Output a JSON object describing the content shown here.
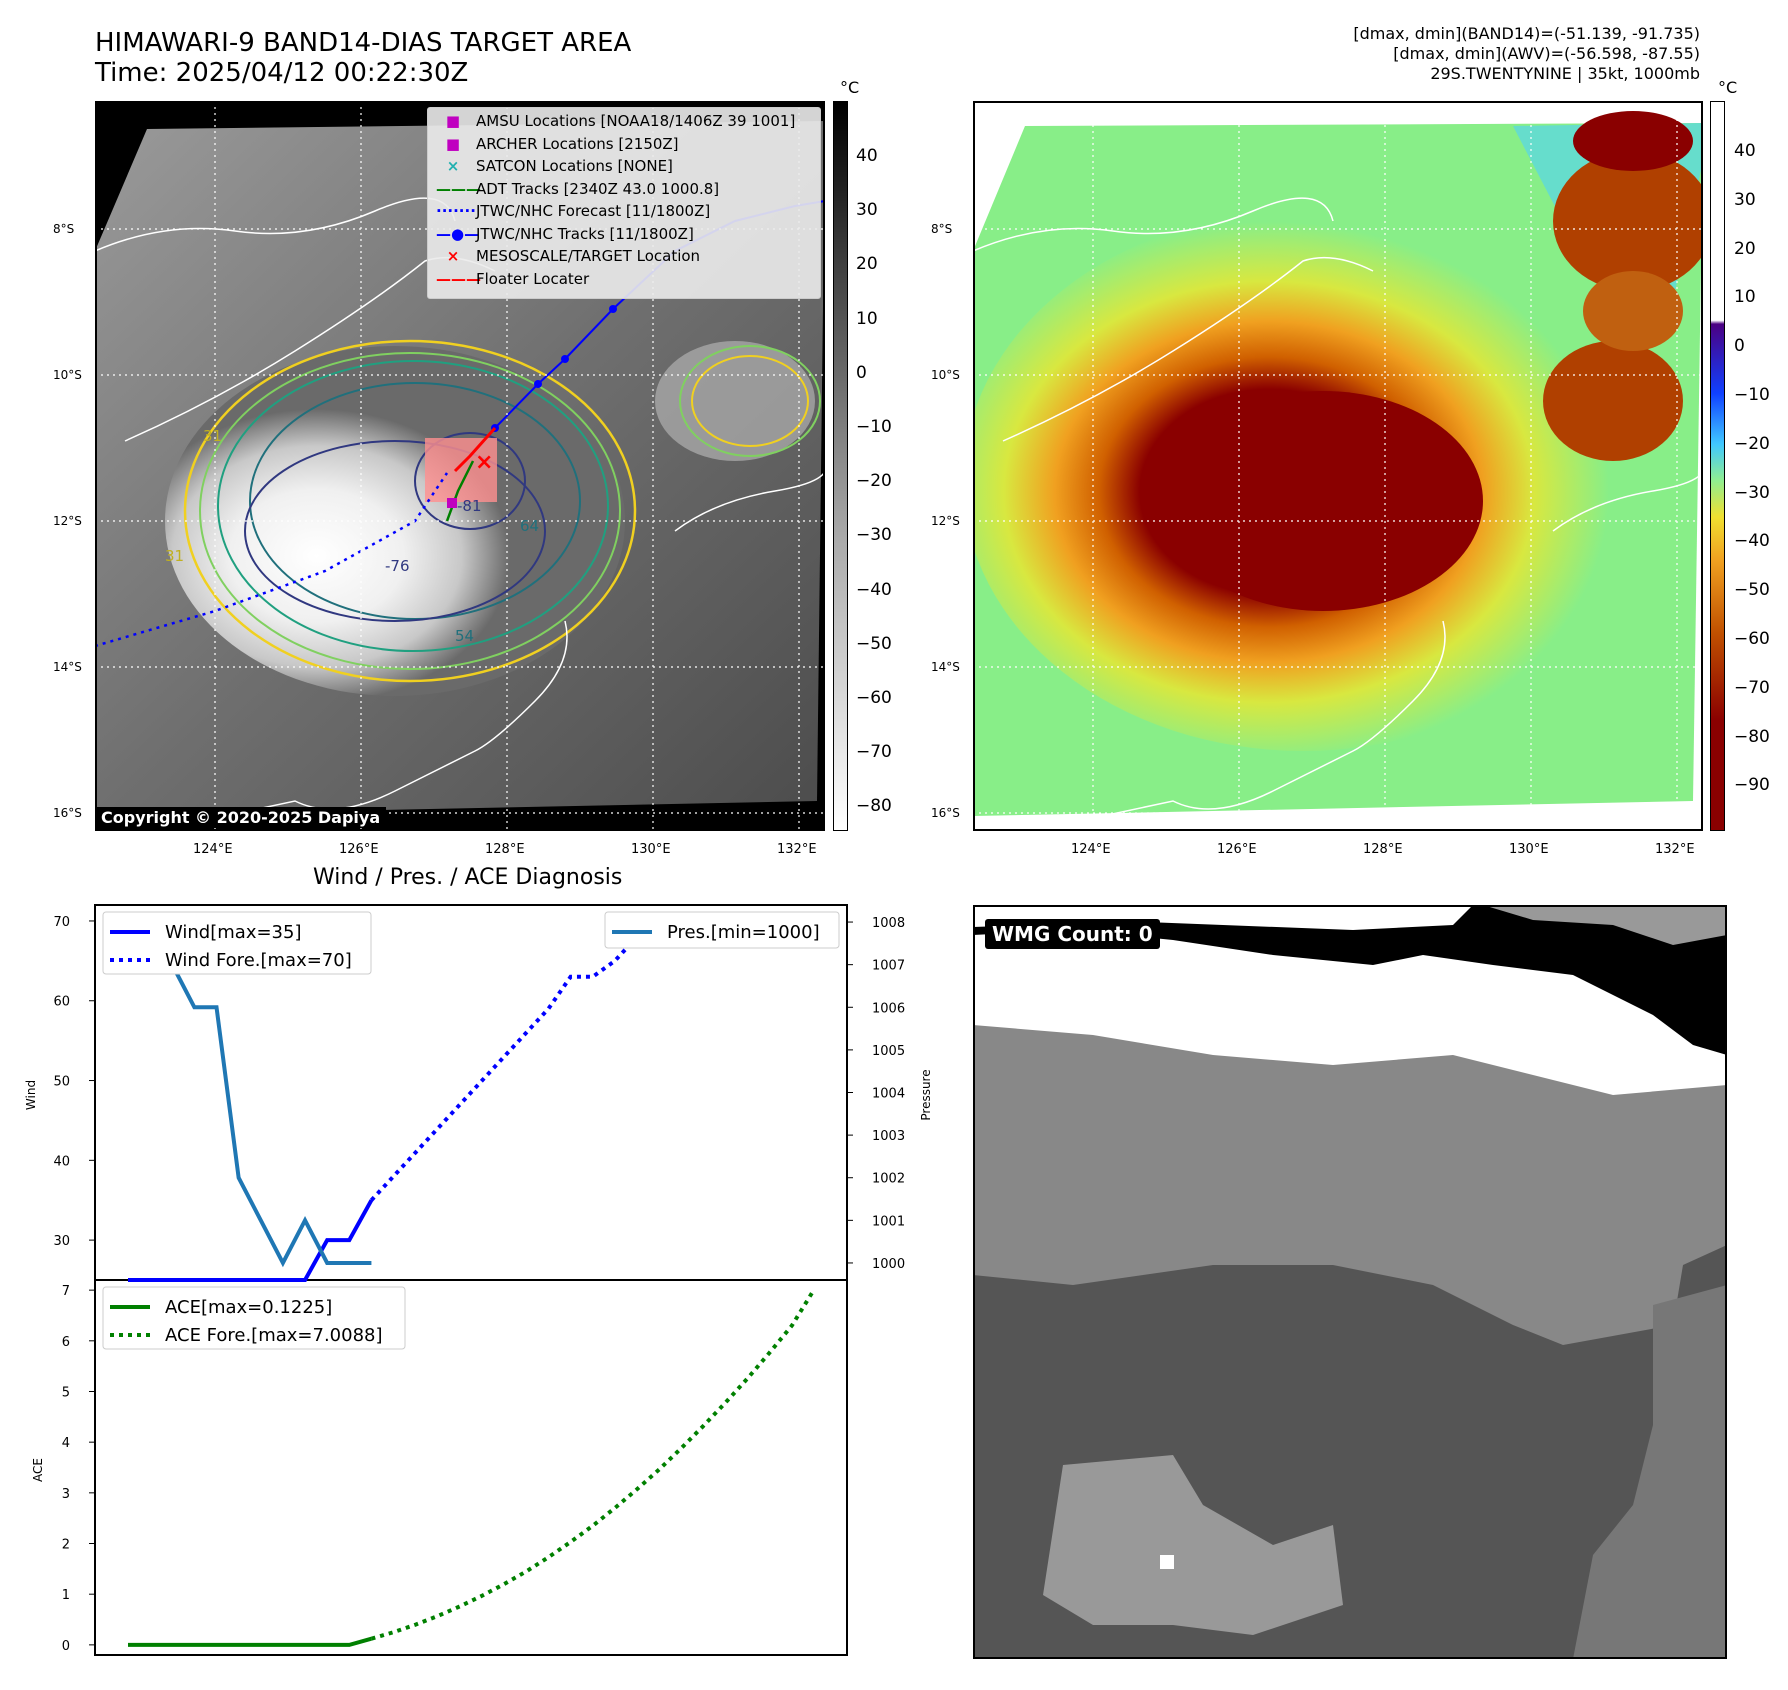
{
  "header": {
    "title_line1": "HIMAWARI-9 BAND14-DIAS TARGET AREA",
    "title_line2": "Time: 2025/04/12 00:22:30Z",
    "right_line1": "[dmax, dmin](BAND14)=(-51.139, -91.735)",
    "right_line2": "[dmax, dmin](AWV)=(-56.598, -87.55)",
    "right_line3": "29S.TWENTYNINE | 35kt, 1000mb"
  },
  "map_common": {
    "lat_labels": [
      "8°S",
      "10°S",
      "12°S",
      "14°S",
      "16°S"
    ],
    "lon_labels": [
      "124°E",
      "126°E",
      "128°E",
      "130°E",
      "132°E"
    ]
  },
  "panel_ir": {
    "legend": [
      {
        "label": "AMSU Locations [NOAA18/1406Z 39 1001]",
        "marker": "square",
        "color": "#c000c0"
      },
      {
        "label": "ARCHER Locations [2150Z]",
        "marker": "square",
        "color": "#c000c0"
      },
      {
        "label": "SATCON Locations [NONE]",
        "marker": "x",
        "color": "#20b0b0"
      },
      {
        "label": "ADT Tracks [2340Z 43.0 1000.8]",
        "marker": "line",
        "color": "#008000"
      },
      {
        "label": "JTWC/NHC Forecast [11/1800Z]",
        "marker": "dotted",
        "color": "#0000ff"
      },
      {
        "label": "JTWC/NHC Tracks [11/1800Z]",
        "marker": "line-dot",
        "color": "#0000ff"
      },
      {
        "label": "MESOSCALE/TARGET Location",
        "marker": "x",
        "color": "#ff0000"
      },
      {
        "label": "Floater Locater",
        "marker": "line",
        "color": "#ff0000"
      }
    ],
    "contour_labels": [
      "31",
      "54",
      "64",
      "-76",
      "-81",
      "31"
    ],
    "copyright": "Copyright © 2020-2025 Dapiya",
    "colorbar_unit": "°C",
    "colorbar_ticks": [
      "40",
      "30",
      "20",
      "10",
      "0",
      "−10",
      "−20",
      "−30",
      "−40",
      "−50",
      "−60",
      "−70",
      "−80"
    ]
  },
  "panel_wv": {
    "colorbar_unit": "°C",
    "colorbar_ticks": [
      "40",
      "30",
      "20",
      "10",
      "0",
      "−10",
      "−20",
      "−30",
      "−40",
      "−50",
      "−60",
      "−70",
      "−80",
      "−90"
    ]
  },
  "panel_wmg": {
    "badge": "WMG Count: 0"
  },
  "colors": {
    "wind": "#0000ff",
    "pressure": "#1f77b4",
    "ace": "#008000",
    "rgb_dark": "#555555",
    "rgb_mid": "#999999",
    "rgb_light": "#bbbbbb"
  },
  "chart_data": {
    "type": "line",
    "title": "Wind / Pres. / ACE Diagnosis",
    "panels": [
      {
        "name": "wind-pressure",
        "ylabel": "Wind",
        "ylabel_right": "Pressure",
        "ylim": [
          25,
          72
        ],
        "ylim_right": [
          999.6,
          1008.4
        ],
        "yticks": [
          30,
          40,
          50,
          60,
          70
        ],
        "yticks_right": [
          1000,
          1001,
          1002,
          1003,
          1004,
          1005,
          1006,
          1007,
          1008
        ],
        "legend_left": [
          "Wind[max=35]",
          "Wind Fore.[max=70]"
        ],
        "legend_right": [
          "Pres.[min=1000]"
        ],
        "series": [
          {
            "name": "Wind[max=35]",
            "axis": "left",
            "style": "solid",
            "color": "#0000ff",
            "x": [
              0,
              1,
              2,
              3,
              4,
              5,
              6,
              7,
              8,
              9,
              10,
              11
            ],
            "y": [
              25,
              25,
              25,
              25,
              25,
              25,
              25,
              25,
              25,
              30,
              30,
              35
            ]
          },
          {
            "name": "Wind Fore.[max=70]",
            "axis": "left",
            "style": "dotted",
            "color": "#0000ff",
            "x": [
              11,
              12,
              13,
              14,
              15,
              16,
              17,
              18,
              19,
              20,
              21,
              22,
              23,
              24,
              25,
              26,
              27,
              28,
              29,
              30,
              31
            ],
            "y": [
              35,
              38,
              41,
              44,
              47,
              50,
              53,
              56,
              59,
              63,
              63,
              65,
              68,
              70,
              70,
              70,
              70,
              70,
              70,
              70,
              68
            ]
          },
          {
            "name": "Pres.[min=1000]",
            "axis": "right",
            "style": "solid",
            "color": "#1f77b4",
            "x": [
              0,
              1,
              2,
              3,
              4,
              5,
              6,
              7,
              8,
              9,
              10,
              11
            ],
            "y": [
              1008,
              1007,
              1007,
              1006,
              1006,
              1002,
              1001,
              1000,
              1001,
              1000,
              1000,
              1000
            ]
          }
        ]
      },
      {
        "name": "ace",
        "ylabel": "ACE",
        "ylim": [
          -0.2,
          7.2
        ],
        "yticks": [
          0,
          1,
          2,
          3,
          4,
          5,
          6,
          7
        ],
        "legend_left": [
          "ACE[max=0.1225]",
          "ACE Fore.[max=7.0088]"
        ],
        "series": [
          {
            "name": "ACE[max=0.1225]",
            "style": "solid",
            "color": "#008000",
            "x": [
              0,
              1,
              2,
              3,
              4,
              5,
              6,
              7,
              8,
              9,
              10,
              11
            ],
            "y": [
              0,
              0,
              0,
              0,
              0,
              0,
              0,
              0,
              0,
              0,
              0,
              0.1225
            ]
          },
          {
            "name": "ACE Fore.[max=7.0088]",
            "style": "dotted",
            "color": "#008000",
            "x": [
              11,
              12,
              13,
              14,
              15,
              16,
              17,
              18,
              19,
              20,
              21,
              22,
              23,
              24,
              25,
              26,
              27,
              28,
              29,
              30,
              31
            ],
            "y": [
              0.1225,
              0.25,
              0.4,
              0.57,
              0.76,
              0.97,
              1.2,
              1.45,
              1.73,
              2.03,
              2.35,
              2.7,
              3.07,
              3.46,
              3.88,
              4.32,
              4.78,
              5.26,
              5.77,
              6.3,
              7.0088
            ]
          }
        ]
      }
    ]
  }
}
